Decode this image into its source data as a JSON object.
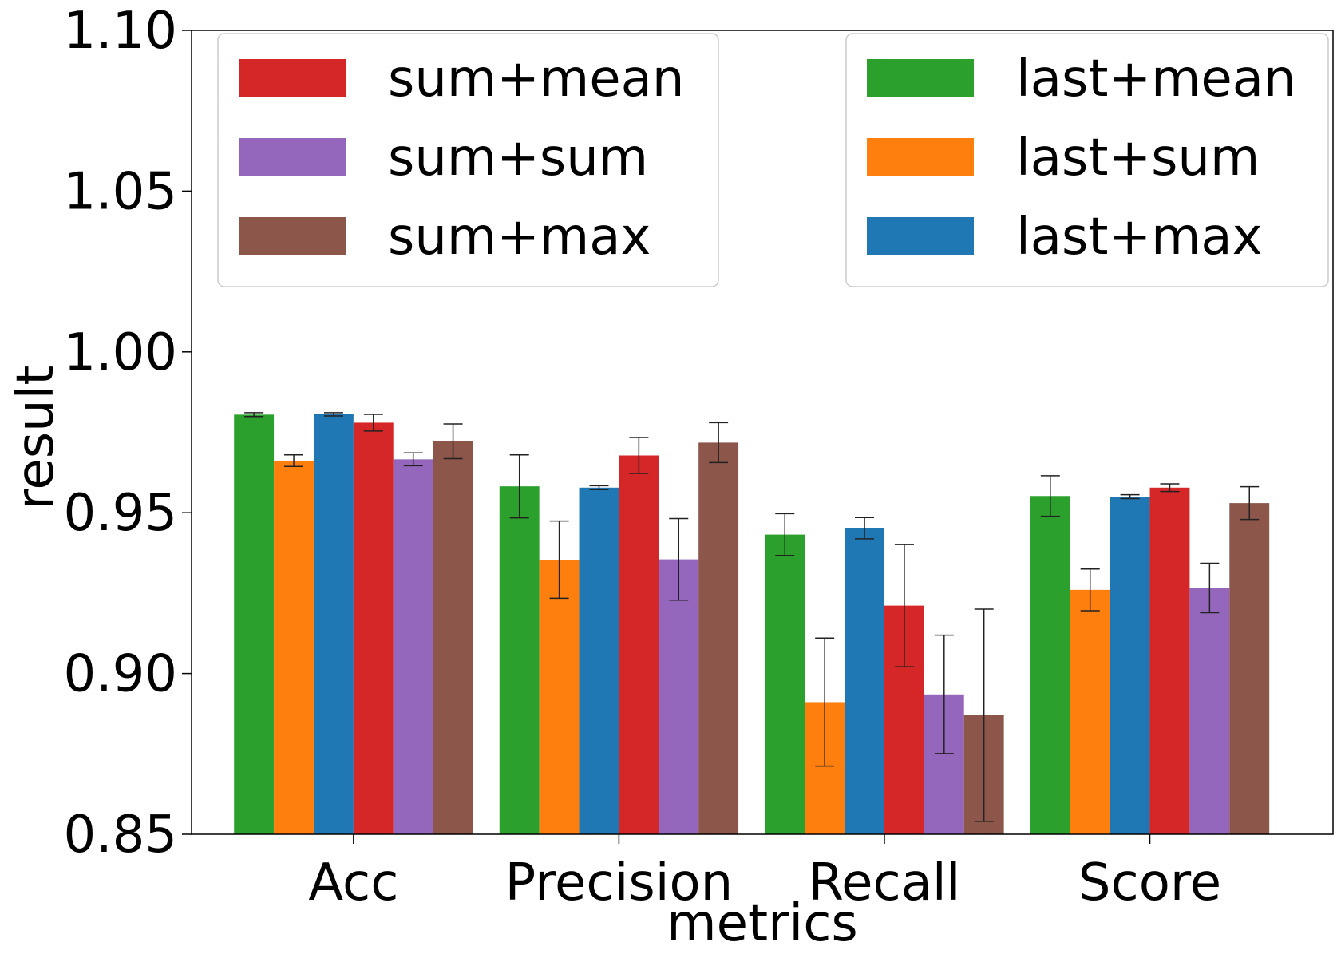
{
  "chart_data": {
    "type": "bar",
    "xlabel": "metrics",
    "ylabel": "result",
    "ylim": [
      0.85,
      1.1
    ],
    "yticks": [
      "0.85",
      "0.90",
      "0.95",
      "1.00",
      "1.05",
      "1.10"
    ],
    "grid": false,
    "categories": [
      "Acc",
      "Precision",
      "Recall",
      "Score"
    ],
    "series": [
      {
        "name": "last+mean",
        "color": "#2ca02c",
        "values": [
          0.9805,
          0.9582,
          0.9432,
          0.9552
        ],
        "errors": [
          0.0006,
          0.0098,
          0.0065,
          0.0063
        ]
      },
      {
        "name": "last+sum",
        "color": "#ff7f0e",
        "values": [
          0.9662,
          0.9354,
          0.8911,
          0.926
        ],
        "errors": [
          0.0018,
          0.012,
          0.0199,
          0.0065
        ]
      },
      {
        "name": "last+max",
        "color": "#1f77b4",
        "values": [
          0.9806,
          0.9578,
          0.9452,
          0.955
        ],
        "errors": [
          0.0005,
          0.0006,
          0.0033,
          0.0006
        ]
      },
      {
        "name": "sum+mean",
        "color": "#d62728",
        "values": [
          0.978,
          0.9678,
          0.9211,
          0.9578
        ],
        "errors": [
          0.0026,
          0.0056,
          0.019,
          0.0012
        ]
      },
      {
        "name": "sum+sum",
        "color": "#9467bd",
        "values": [
          0.9666,
          0.9355,
          0.8935,
          0.9266
        ],
        "errors": [
          0.002,
          0.0127,
          0.0184,
          0.0077
        ]
      },
      {
        "name": "sum+max",
        "color": "#8c564b",
        "values": [
          0.9722,
          0.9718,
          0.887,
          0.953
        ],
        "errors": [
          0.0054,
          0.0062,
          0.033,
          0.0051
        ]
      }
    ],
    "legends": [
      {
        "position": "top-left",
        "entries": [
          "sum+mean",
          "sum+sum",
          "sum+max"
        ]
      },
      {
        "position": "top-right",
        "entries": [
          "last+mean",
          "last+sum",
          "last+max"
        ]
      }
    ]
  }
}
